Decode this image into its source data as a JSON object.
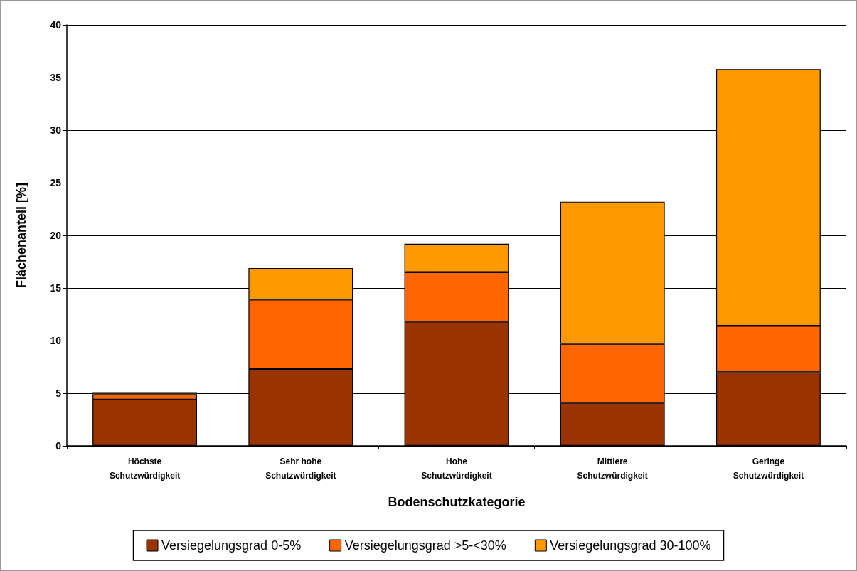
{
  "chart_data": {
    "type": "bar",
    "stacked": true,
    "xlabel": "Bodenschutzkategorie",
    "ylabel": "Flächenanteil [%]",
    "categories": [
      "Höchste\nSchutzwürdigkeit",
      "Sehr hohe\nSchutzwürdigkeit",
      "Hohe\nSchutzwürdigkeit",
      "Mittlere\nSchutzwürdigkeit",
      "Geringe\nSchutzwürdigkeit"
    ],
    "series": [
      {
        "name": "Versiegelungsgrad 0-5%",
        "color": "#993300",
        "values": [
          4.4,
          7.3,
          11.8,
          4.1,
          7.0
        ]
      },
      {
        "name": "Versiegelungsgrad >5-<30%",
        "color": "#ff6600",
        "values": [
          0.5,
          6.6,
          4.7,
          5.6,
          4.4
        ]
      },
      {
        "name": "Versiegelungsgrad 30-100%",
        "color": "#ff9900",
        "values": [
          0.2,
          3.0,
          2.7,
          13.5,
          24.4
        ]
      }
    ],
    "ylim": [
      0,
      40
    ],
    "yticks": [
      0,
      5,
      10,
      15,
      20,
      25,
      30,
      35,
      40
    ],
    "grid": "y",
    "legend": "bottom"
  }
}
